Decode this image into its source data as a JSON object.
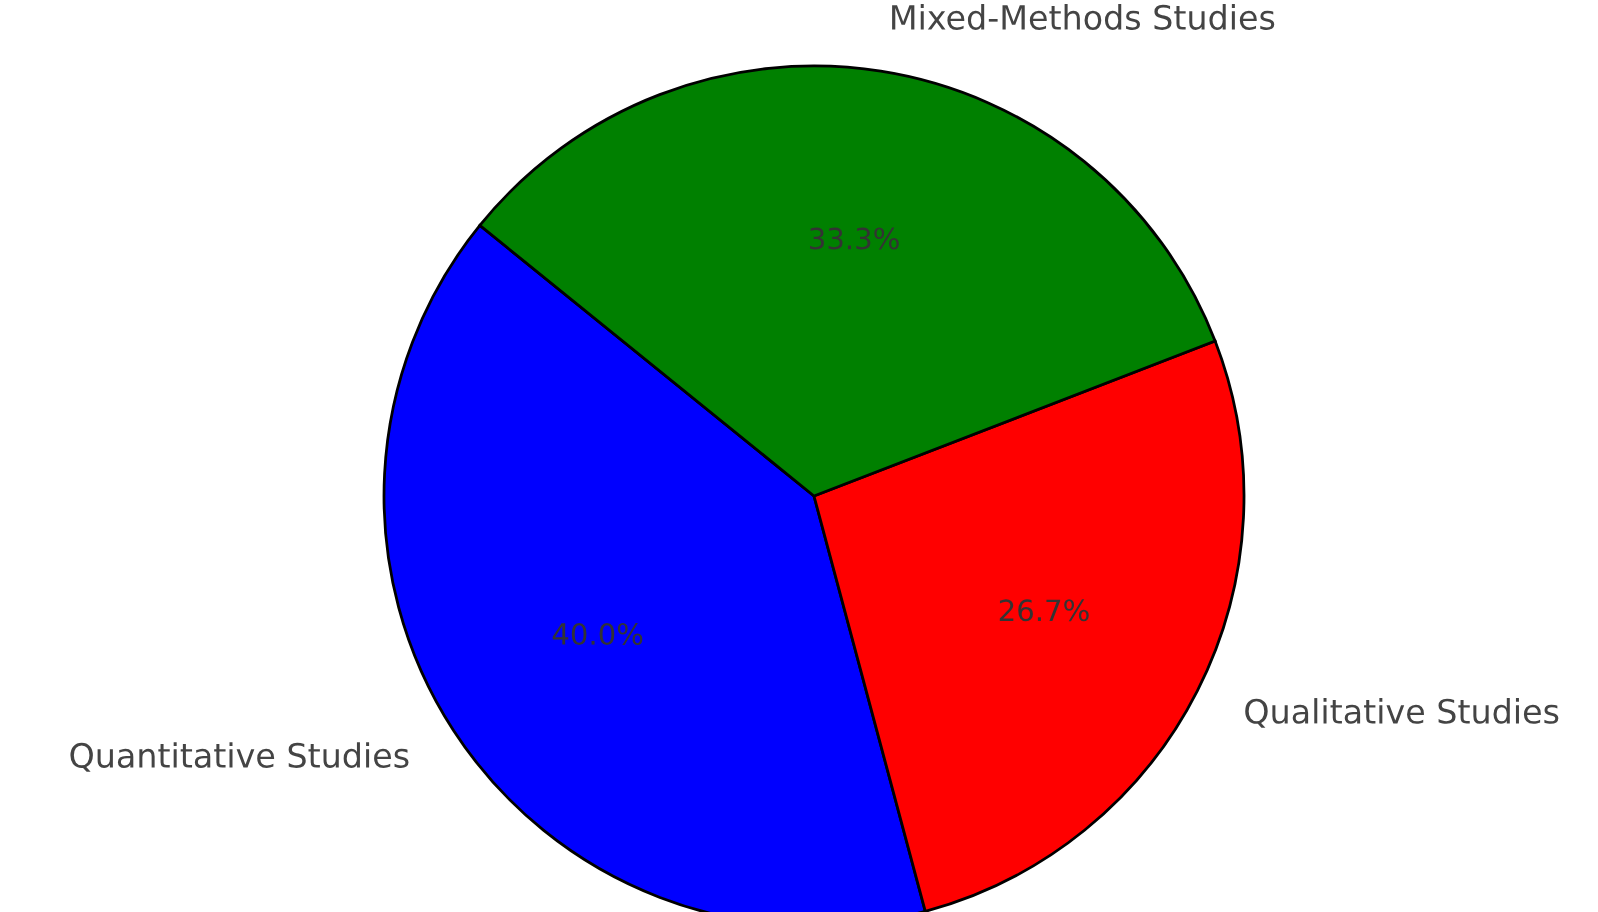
{
  "chart_data": {
    "type": "pie",
    "categories": [
      "Quantitative Studies",
      "Qualitative Studies",
      "Mixed-Methods Studies"
    ],
    "values": [
      40.0,
      26.7,
      33.3
    ],
    "colors": [
      "#0000ff",
      "#ff0000",
      "#008000"
    ],
    "value_labels": [
      "40.0%",
      "26.7%",
      "33.3%"
    ]
  }
}
